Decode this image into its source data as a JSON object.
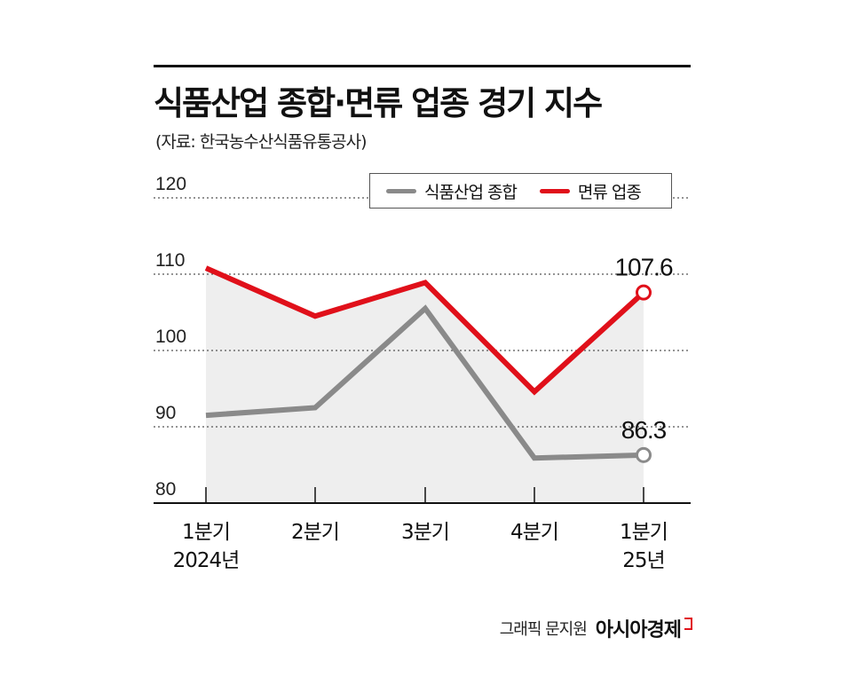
{
  "title": "식품산업 종합·면류 업종 경기 지수",
  "source": "(자료: 한국농수산식품유통공사)",
  "legend": [
    {
      "label": "식품산업 종합",
      "color": "#8a8a8a"
    },
    {
      "label": "면류 업종",
      "color": "#e0101a"
    }
  ],
  "chart_data": {
    "type": "line",
    "title": "식품산업 종합·면류 업종 경기 지수",
    "categories": [
      "1분기\n2024년",
      "2분기",
      "3분기",
      "4분기",
      "1분기\n25년"
    ],
    "category_lines": [
      [
        "1분기",
        "2024년"
      ],
      [
        "2분기"
      ],
      [
        "3분기"
      ],
      [
        "4분기"
      ],
      [
        "1분기",
        "25년"
      ]
    ],
    "series": [
      {
        "name": "식품산업 종합",
        "color": "#8a8a8a",
        "values": [
          91.5,
          92.5,
          105.5,
          85.9,
          86.3
        ]
      },
      {
        "name": "면류 업종",
        "color": "#e0101a",
        "values": [
          110.8,
          104.5,
          108.9,
          94.6,
          107.6
        ]
      }
    ],
    "ylim": [
      80,
      120
    ],
    "yticks": [
      80,
      90,
      100,
      110,
      120
    ],
    "end_labels": [
      "86.3",
      "107.6"
    ],
    "xlabel": "",
    "ylabel": ""
  },
  "credit": "그래픽 문지원",
  "brand": "아시아경제"
}
